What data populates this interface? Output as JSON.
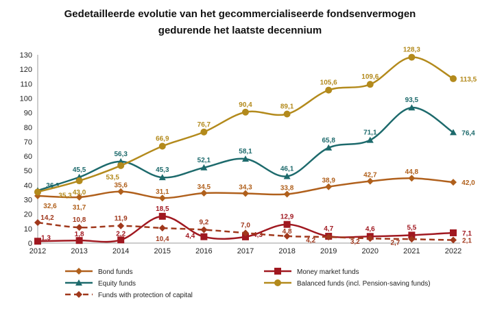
{
  "chart_data": {
    "type": "line",
    "title_line1": "Gedetailleerde evolutie van het gecommercialiseerde fondsenvermogen",
    "title_line2": "gedurende het laatste decennium",
    "x": [
      "2012",
      "2013",
      "2014",
      "2015",
      "2016",
      "2017",
      "2018",
      "2019",
      "2020",
      "2021",
      "2022"
    ],
    "ylim": [
      0,
      130
    ],
    "yticks": [
      0,
      10,
      20,
      30,
      40,
      50,
      60,
      70,
      80,
      90,
      100,
      110,
      120,
      130
    ],
    "legend_position": "bottom",
    "series": [
      {
        "name": "Bond funds",
        "color": "#b0601c",
        "marker": "diamond",
        "dash": false,
        "values": [
          32.6,
          31.7,
          35.6,
          31.1,
          34.5,
          34.3,
          33.8,
          38.9,
          42.7,
          44.8,
          42.0
        ],
        "labels": [
          "32,6",
          "31,7",
          "35,6",
          "31,1",
          "34,5",
          "34,3",
          "33,8",
          "38,9",
          "42,7",
          "44,8",
          "42,0"
        ]
      },
      {
        "name": "Money market funds",
        "color": "#a01820",
        "marker": "square",
        "dash": false,
        "values": [
          1.3,
          1.8,
          2.2,
          18.5,
          4.4,
          4.3,
          12.9,
          4.7,
          4.6,
          5.5,
          7.1
        ],
        "labels": [
          "1,3",
          "1,8",
          "2,2",
          "18,5",
          "4,4",
          "4,3",
          "12,9",
          "4,7",
          "4,6",
          "5,5",
          "7,1"
        ]
      },
      {
        "name": "Equity funds",
        "color": "#1d6a6c",
        "marker": "triangle",
        "dash": false,
        "values": [
          36.3,
          45.5,
          56.3,
          45.3,
          52.1,
          58.1,
          46.1,
          65.8,
          71.1,
          93.5,
          76.4
        ],
        "labels": [
          "36,3",
          "45,5",
          "56,3",
          "45,3",
          "52,1",
          "58,1",
          "46,1",
          "65,8",
          "71,1",
          "93,5",
          "76,4"
        ]
      },
      {
        "name": "Balanced funds (incl. Pension-saving funds)",
        "color": "#b38a1c",
        "marker": "circle",
        "dash": false,
        "values": [
          35.3,
          43.0,
          53.5,
          66.9,
          76.7,
          90.4,
          89.1,
          105.6,
          109.6,
          128.3,
          113.5
        ],
        "labels": [
          "35,3",
          "43,0",
          "53,5",
          "66,9",
          "76,7",
          "90,4",
          "89,1",
          "105,6",
          "109,6",
          "128,3",
          "113,5"
        ]
      },
      {
        "name": "Funds with protection of capital",
        "color": "#a0381c",
        "marker": "diamond",
        "dash": true,
        "values": [
          14.2,
          10.8,
          11.9,
          10.4,
          9.2,
          7.0,
          4.8,
          4.2,
          3.2,
          2.7,
          2.1
        ],
        "labels": [
          "14,2",
          "10,8",
          "11,9",
          "10,4",
          "9,2",
          "7,0",
          "4,8",
          "4,2",
          "3,2",
          "2,7",
          "2,1"
        ]
      }
    ]
  }
}
